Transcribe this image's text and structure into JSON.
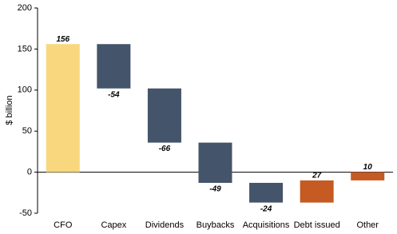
{
  "chart_data": {
    "type": "waterfall",
    "y_label": "$ billion",
    "categories": [
      "CFO",
      "Capex",
      "Dividends",
      "Buybacks",
      "Acquisitions",
      "Debt issued",
      "Other"
    ],
    "values": [
      156,
      -54,
      -66,
      -49,
      -24,
      27,
      10
    ],
    "colors": [
      "#f9d77e",
      "#44546a",
      "#44546a",
      "#44546a",
      "#44546a",
      "#c55a22",
      "#c55a22"
    ],
    "ylim": [
      -50,
      200
    ],
    "yticks": [
      -50,
      0,
      50,
      100,
      150,
      200
    ],
    "grid": false
  }
}
